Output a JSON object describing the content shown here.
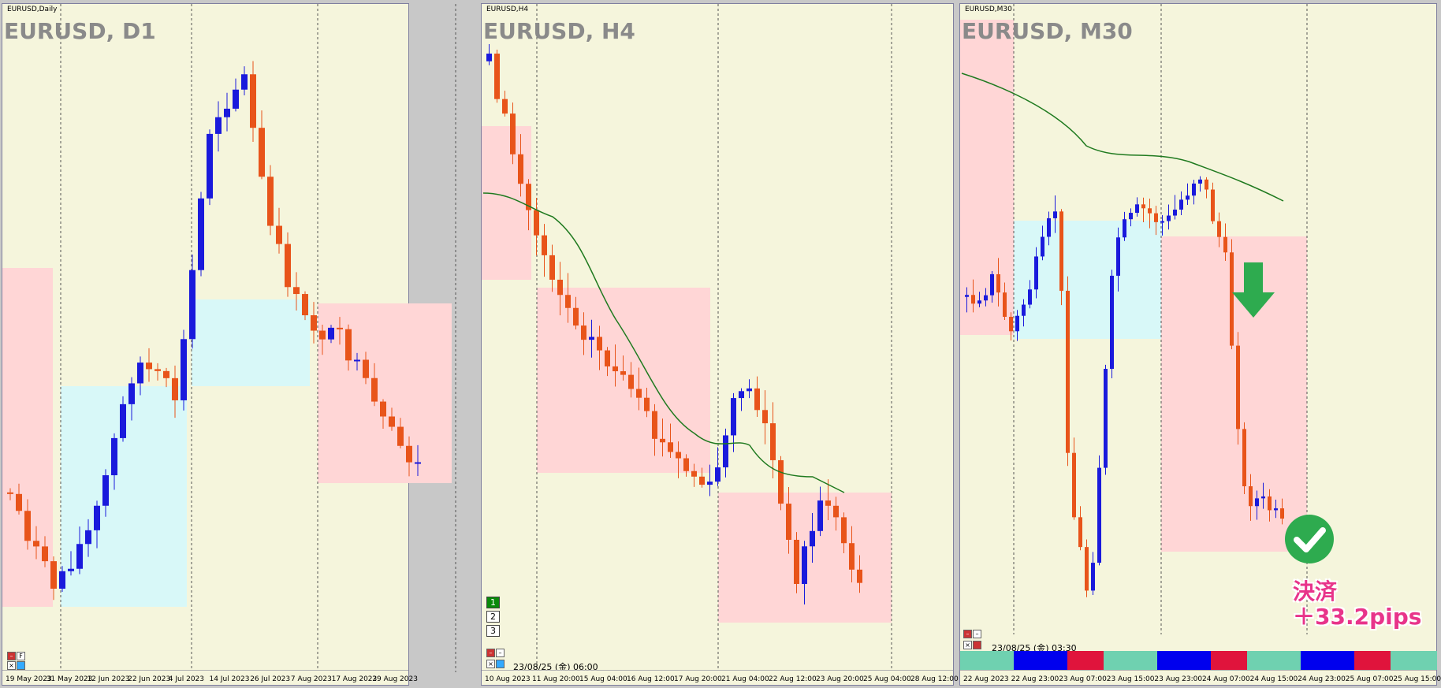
{
  "panels": [
    {
      "window_title": "EURUSD,Daily",
      "chart_title": "EURUSD, D1",
      "x_labels": [
        "19 May 2023",
        "31 May 2023",
        "12 Jun 2023",
        "22 Jun 2023",
        "4 Jul 2023",
        "14 Jul 2023",
        "26 Jul 2023",
        "7 Aug 2023",
        "17 Aug 2023",
        "29 Aug 2023"
      ],
      "controls": [
        "F"
      ]
    },
    {
      "window_title": "EURUSD,H4",
      "chart_title": "EURUSD, H4",
      "x_labels": [
        "10 Aug 2023",
        "11 Aug 20:00",
        "15 Aug 04:00",
        "16 Aug 12:00",
        "17 Aug 20:00",
        "21 Aug 04:00",
        "22 Aug 12:00",
        "23 Aug 20:00",
        "25 Aug 04:00",
        "28 Aug 12:00"
      ],
      "num_buttons": [
        "1",
        "2",
        "3"
      ],
      "time_label": "23/08/25 (金) 06:00"
    },
    {
      "window_title": "EURUSD,M30",
      "chart_title": "EURUSD, M30",
      "x_labels": [
        "22 Aug 2023",
        "22 Aug 23:00",
        "23 Aug 07:00",
        "23 Aug 15:00",
        "23 Aug 23:00",
        "24 Aug 07:00",
        "24 Aug 15:00",
        "24 Aug 23:00",
        "25 Aug 07:00",
        "25 Aug 15:00"
      ],
      "time_label": "23/08/25 (金) 03:30",
      "result_line1": "決済",
      "result_line2": "＋33.2pips"
    }
  ],
  "colors": {
    "background": "#f5f5dc",
    "bull": "#1a1adc",
    "bear": "#e8541a",
    "ma": "#1f7a1f",
    "box_pink": "#ffd6d6",
    "box_cyan": "#d8f8f8",
    "arrow": "#2eab4f",
    "result_text": "#e8348a"
  },
  "icons": [
    "down-arrow-icon",
    "check-icon",
    "close-icon",
    "pin-icon"
  ]
}
